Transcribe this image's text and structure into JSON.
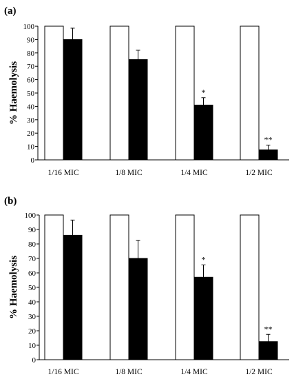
{
  "chart_data": [
    {
      "type": "bar",
      "panel_label": "(a)",
      "ylabel": "% Haemolysis",
      "ylim": [
        0,
        100
      ],
      "y_ticks": [
        "0",
        "10",
        "20",
        "30",
        "40",
        "50",
        "60",
        "70",
        "80",
        "90",
        "100"
      ],
      "categories": [
        "1/16 MIC",
        "1/8 MIC",
        "1/4 MIC",
        "1/2 MIC"
      ],
      "series": [
        {
          "values": [
            100,
            100,
            100,
            100
          ],
          "errors": [
            0,
            0,
            0,
            0
          ],
          "color": "#ffffff"
        },
        {
          "values": [
            90,
            75,
            41,
            7.5
          ],
          "errors": [
            8.5,
            7,
            5.5,
            3.5
          ],
          "color": "#000000"
        }
      ],
      "significance": [
        "",
        "",
        "*",
        "**"
      ]
    },
    {
      "type": "bar",
      "panel_label": "(b)",
      "ylabel": "% Haemolysis",
      "ylim": [
        0,
        100
      ],
      "y_ticks": [
        "0",
        "10",
        "20",
        "30",
        "40",
        "50",
        "60",
        "70",
        "80",
        "90",
        "100"
      ],
      "categories": [
        "1/16 MIC",
        "1/8 MIC",
        "1/4 MIC",
        "1/2 MIC"
      ],
      "series": [
        {
          "values": [
            100,
            100,
            100,
            100
          ],
          "errors": [
            0,
            0,
            0,
            0
          ],
          "color": "#ffffff"
        },
        {
          "values": [
            86,
            70,
            57,
            12.5
          ],
          "errors": [
            10.5,
            12.5,
            8.5,
            5
          ],
          "color": "#000000"
        }
      ],
      "significance": [
        "",
        "",
        "*",
        "**"
      ]
    }
  ]
}
